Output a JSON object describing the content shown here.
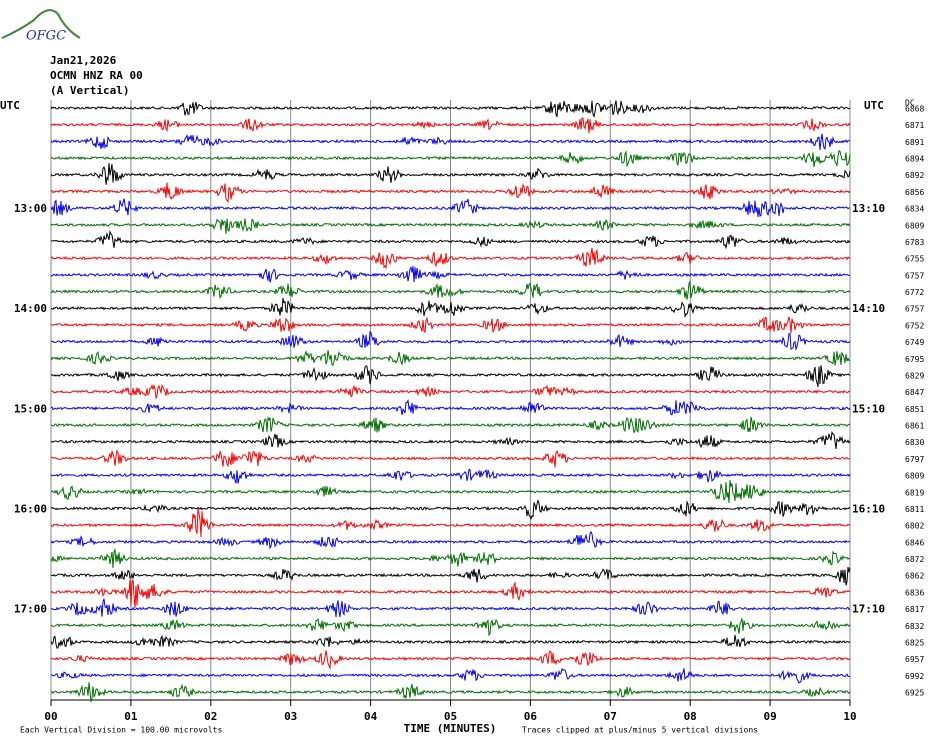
{
  "header": {
    "logo": "OFGC",
    "date": "Jan21,2026",
    "station": "OCMN HNZ RA 00",
    "component": "(A Vertical)"
  },
  "left_axis": {
    "title": "UTC",
    "labels": [
      "13:00",
      "14:00",
      "15:00",
      "16:00",
      "17:00"
    ]
  },
  "right_axis": {
    "title": "UTC",
    "labels": [
      "13:10",
      "14:10",
      "15:10",
      "16:10",
      "17:10"
    ]
  },
  "dc_column": {
    "title": "DC",
    "values": [
      6868,
      6871,
      6891,
      6894,
      6892,
      6856,
      6834,
      6809,
      6783,
      6755,
      6757,
      6772,
      6757,
      6752,
      6749,
      6795,
      6829,
      6847,
      6851,
      6861,
      6830,
      6797,
      6809,
      6819,
      6811,
      6802,
      6846,
      6872,
      6862,
      6836,
      6817,
      6832,
      6825,
      6957,
      6992,
      6925
    ]
  },
  "trace_colors": [
    "#000000",
    "#ff0000",
    "#0000ff",
    "#007000"
  ],
  "x_axis": {
    "title": "TIME (MINUTES)",
    "ticks": [
      "00",
      "01",
      "02",
      "03",
      "04",
      "05",
      "06",
      "07",
      "08",
      "09",
      "10"
    ]
  },
  "footer": {
    "scale_note": "Each Vertical Division =  100.00 microvolts",
    "clip_note": "Traces clipped at plus/minus 5 vertical divisions"
  }
}
